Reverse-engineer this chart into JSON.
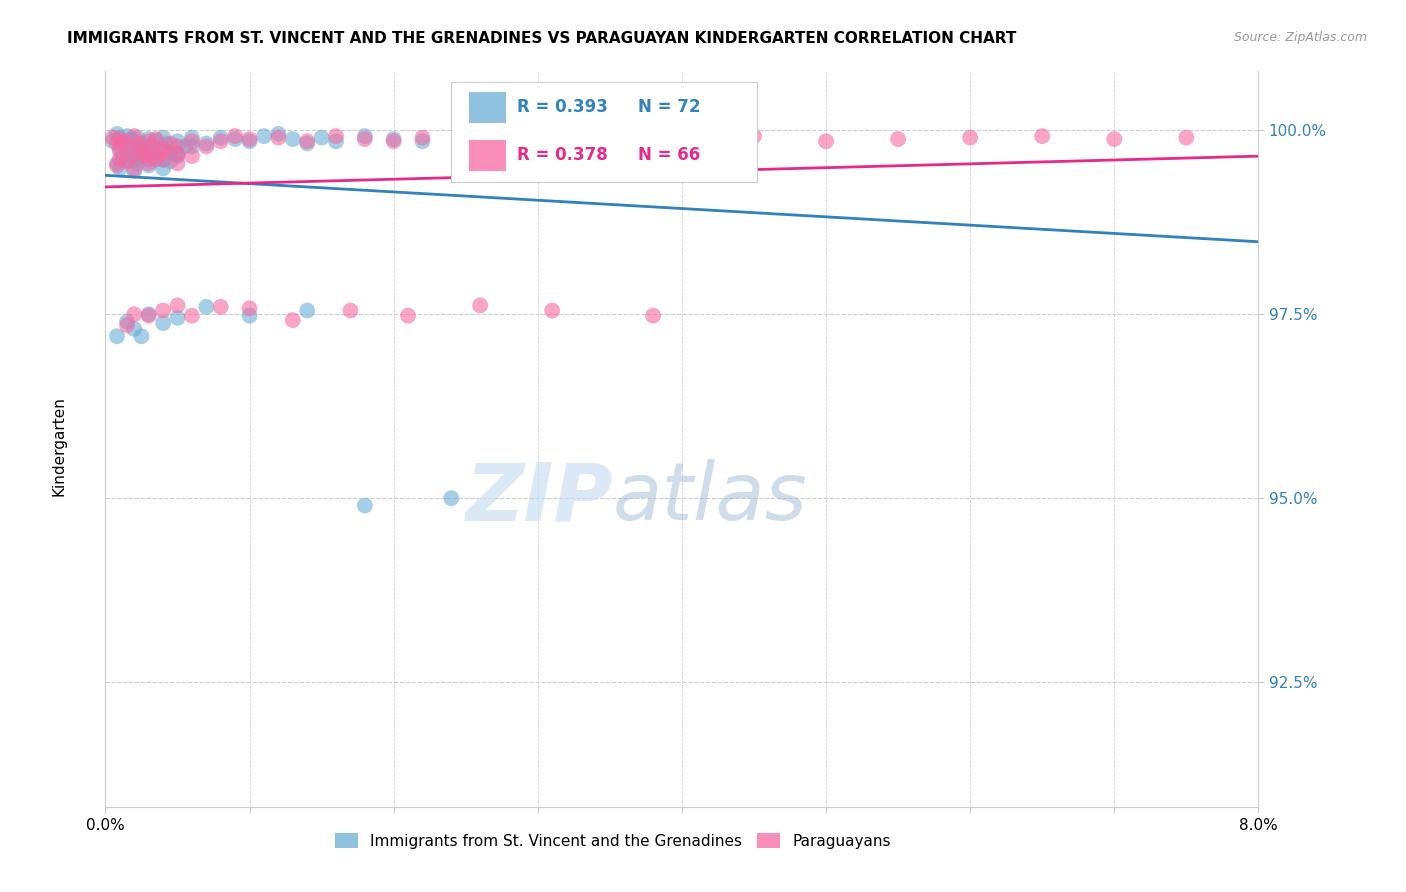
{
  "title": "IMMIGRANTS FROM ST. VINCENT AND THE GRENADINES VS PARAGUAYAN KINDERGARTEN CORRELATION CHART",
  "source": "Source: ZipAtlas.com",
  "ylabel": "Kindergarten",
  "ytick_labels": [
    "92.5%",
    "95.0%",
    "97.5%",
    "100.0%"
  ],
  "ytick_values": [
    0.925,
    0.95,
    0.975,
    1.0
  ],
  "xlim": [
    0.0,
    0.08
  ],
  "ylim": [
    0.908,
    1.008
  ],
  "legend_blue_label": "Immigrants from St. Vincent and the Grenadines",
  "legend_pink_label": "Paraguayans",
  "R_blue": 0.393,
  "N_blue": 72,
  "R_pink": 0.378,
  "N_pink": 66,
  "blue_color": "#6baed6",
  "pink_color": "#f768a1",
  "blue_line_color": "#3182bd",
  "pink_line_color": "#e7298a",
  "blue_x": [
    0.0005,
    0.0008,
    0.001,
    0.001,
    0.0012,
    0.0015,
    0.0015,
    0.0018,
    0.002,
    0.002,
    0.002,
    0.0022,
    0.0022,
    0.0025,
    0.0025,
    0.003,
    0.003,
    0.003,
    0.0032,
    0.0035,
    0.0035,
    0.004,
    0.004,
    0.004,
    0.0042,
    0.0045,
    0.005,
    0.005,
    0.0055,
    0.006,
    0.0008,
    0.001,
    0.0012,
    0.0015,
    0.002,
    0.0022,
    0.0025,
    0.003,
    0.0035,
    0.004,
    0.0045,
    0.005,
    0.006,
    0.007,
    0.008,
    0.009,
    0.01,
    0.011,
    0.012,
    0.013,
    0.014,
    0.015,
    0.016,
    0.018,
    0.02,
    0.022,
    0.025,
    0.028,
    0.032,
    0.036,
    0.0008,
    0.0015,
    0.002,
    0.0025,
    0.003,
    0.004,
    0.005,
    0.007,
    0.01,
    0.014,
    0.018,
    0.024
  ],
  "blue_y": [
    0.9985,
    0.9995,
    0.999,
    0.9975,
    0.998,
    0.9992,
    0.997,
    0.9988,
    0.9985,
    0.9978,
    0.996,
    0.999,
    0.9972,
    0.9982,
    0.9965,
    0.9975,
    0.9988,
    0.996,
    0.9978,
    0.9985,
    0.9968,
    0.999,
    0.9975,
    0.996,
    0.9982,
    0.997,
    0.9985,
    0.9968,
    0.9978,
    0.999,
    0.9955,
    0.9948,
    0.9962,
    0.9958,
    0.9945,
    0.9955,
    0.997,
    0.9952,
    0.996,
    0.9948,
    0.9958,
    0.9965,
    0.9978,
    0.9982,
    0.999,
    0.9988,
    0.9985,
    0.9992,
    0.9995,
    0.9988,
    0.9982,
    0.999,
    0.9985,
    0.9992,
    0.9988,
    0.9985,
    0.999,
    0.9992,
    0.9988,
    0.999,
    0.972,
    0.974,
    0.973,
    0.972,
    0.975,
    0.9738,
    0.9745,
    0.976,
    0.9748,
    0.9755,
    0.949,
    0.95
  ],
  "pink_x": [
    0.0005,
    0.0008,
    0.001,
    0.001,
    0.0012,
    0.0015,
    0.002,
    0.002,
    0.0022,
    0.0025,
    0.003,
    0.003,
    0.0032,
    0.0035,
    0.004,
    0.004,
    0.0045,
    0.005,
    0.005,
    0.006,
    0.0008,
    0.001,
    0.0015,
    0.002,
    0.0025,
    0.003,
    0.0035,
    0.004,
    0.005,
    0.006,
    0.007,
    0.008,
    0.009,
    0.01,
    0.012,
    0.014,
    0.016,
    0.018,
    0.02,
    0.022,
    0.025,
    0.028,
    0.032,
    0.036,
    0.04,
    0.045,
    0.05,
    0.055,
    0.06,
    0.065,
    0.07,
    0.075,
    0.0015,
    0.002,
    0.003,
    0.004,
    0.005,
    0.006,
    0.008,
    0.01,
    0.013,
    0.017,
    0.021,
    0.026,
    0.031,
    0.038
  ],
  "pink_y": [
    0.999,
    0.9982,
    0.9988,
    0.9972,
    0.9985,
    0.9978,
    0.9992,
    0.9968,
    0.9982,
    0.9975,
    0.9985,
    0.9965,
    0.9978,
    0.9988,
    0.9975,
    0.996,
    0.9982,
    0.9978,
    0.9968,
    0.9985,
    0.9952,
    0.996,
    0.9958,
    0.9948,
    0.9965,
    0.9955,
    0.9962,
    0.997,
    0.9955,
    0.9965,
    0.9978,
    0.9985,
    0.9992,
    0.9988,
    0.999,
    0.9985,
    0.9992,
    0.9988,
    0.9985,
    0.999,
    0.9992,
    0.9988,
    0.999,
    0.9985,
    0.9988,
    0.9992,
    0.9985,
    0.9988,
    0.999,
    0.9992,
    0.9988,
    0.999,
    0.9735,
    0.975,
    0.9748,
    0.9755,
    0.9762,
    0.9748,
    0.976,
    0.9758,
    0.9742,
    0.9755,
    0.9748,
    0.9762,
    0.9755,
    0.9748
  ]
}
